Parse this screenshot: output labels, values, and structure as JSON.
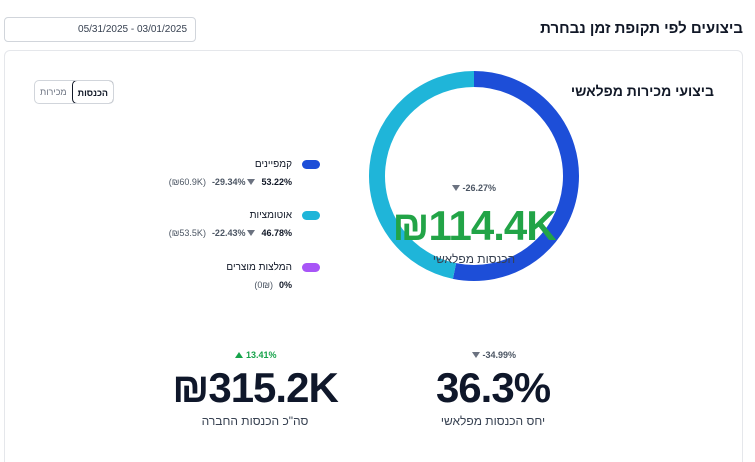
{
  "page": {
    "title": "ביצועים לפי תקופת זמן נבחרת",
    "date_range": "05/31/2025 - 03/01/2025"
  },
  "card": {
    "title": "ביצועי מכירות מפלאשי",
    "toggle": {
      "revenue_label": "הכנסות",
      "sales_label": "מכירות",
      "selected": "הכנסות"
    }
  },
  "legend": [
    {
      "name": "קמפיינים",
      "percent": "53.22%",
      "change": "-29.34%",
      "amount": "(60.9K₪)",
      "color": "#1d4ed8"
    },
    {
      "name": "אוטומציות",
      "percent": "46.78%",
      "change": "-22.43%",
      "amount": "(53.5K₪)",
      "color": "#1fb5d9"
    },
    {
      "name": "המלצות מוצרים",
      "percent": "0%",
      "change": "",
      "amount": "(0₪)",
      "color": "#a855f7"
    }
  ],
  "donut": {
    "value": "₪114.4K",
    "label": "הכנסות מפלאשי",
    "change": "-26.27%",
    "value_color": "#22a447"
  },
  "chart_data": {
    "type": "pie",
    "donut": true,
    "categories": [
      "קמפיינים",
      "אוטומציות",
      "המלצות מוצרים"
    ],
    "values": [
      53.22,
      46.78,
      0
    ],
    "colors": [
      "#1d4ed8",
      "#1fb5d9",
      "#a855f7"
    ]
  },
  "kpis": {
    "ratio": {
      "value": "36.3%",
      "label": "יחס הכנסות מפלאשי",
      "change": "-34.99%",
      "direction": "down"
    },
    "total": {
      "value": "₪315.2K",
      "label": "סה\"כ הכנסות החברה",
      "change": "13.41%",
      "direction": "up"
    }
  }
}
